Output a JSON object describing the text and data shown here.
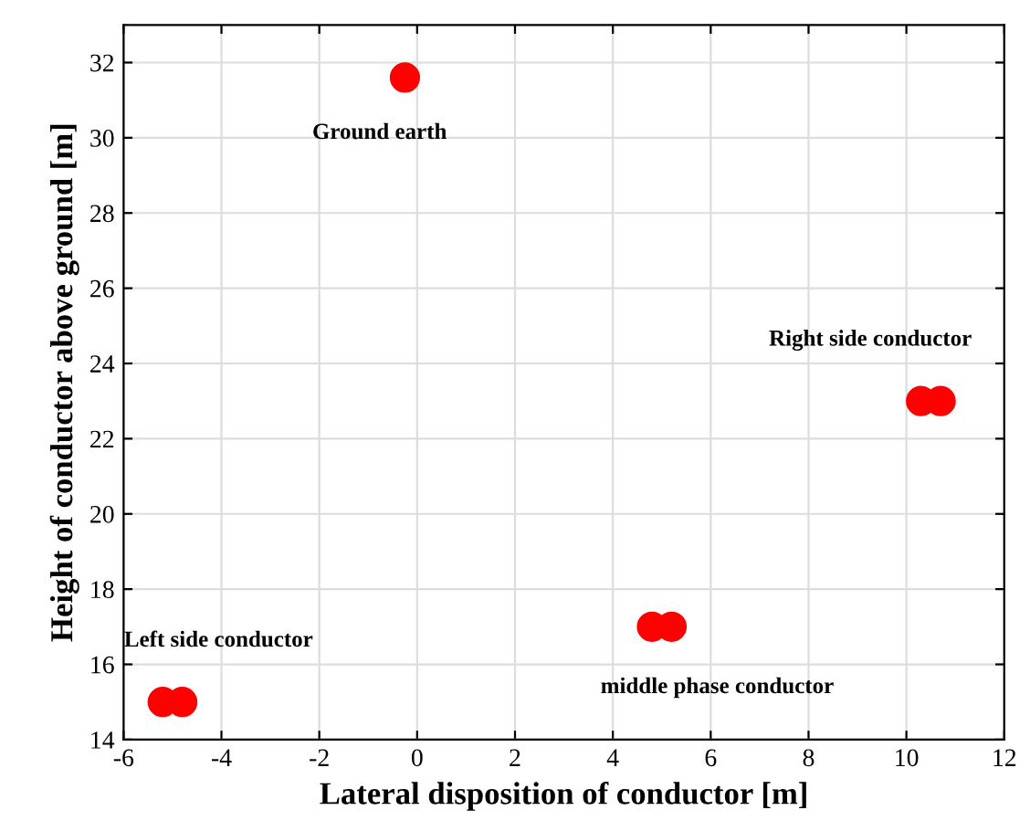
{
  "chart_data": {
    "type": "scatter",
    "xlabel": "Lateral disposition of conductor [m]",
    "ylabel": "Height of conductor above ground [m]",
    "x": [
      -5.2,
      -4.8,
      -0.25,
      4.8,
      5.2,
      10.3,
      10.7
    ],
    "series": [
      {
        "color": "#ff0000",
        "values": [
          15,
          15,
          31.6,
          17,
          17,
          23,
          23
        ]
      }
    ],
    "marker": "circle",
    "grid": true,
    "xlim": [
      -6,
      12
    ],
    "xticks": [
      -6,
      -4,
      -2,
      0,
      2,
      4,
      6,
      8,
      10,
      12
    ],
    "ylim": [
      14,
      33
    ],
    "yticks": [
      14,
      16,
      18,
      20,
      22,
      24,
      26,
      28,
      30,
      32
    ],
    "annotations": [
      {
        "text": "Left side conductor",
        "x": -5.2,
        "y": 15
      },
      {
        "text": "Ground earth",
        "x": -0.25,
        "y": 31.6
      },
      {
        "text": "middle phase conductor",
        "x": 5.2,
        "y": 17
      },
      {
        "text": "Right side conductor",
        "x": 10.3,
        "y": 23
      }
    ]
  }
}
